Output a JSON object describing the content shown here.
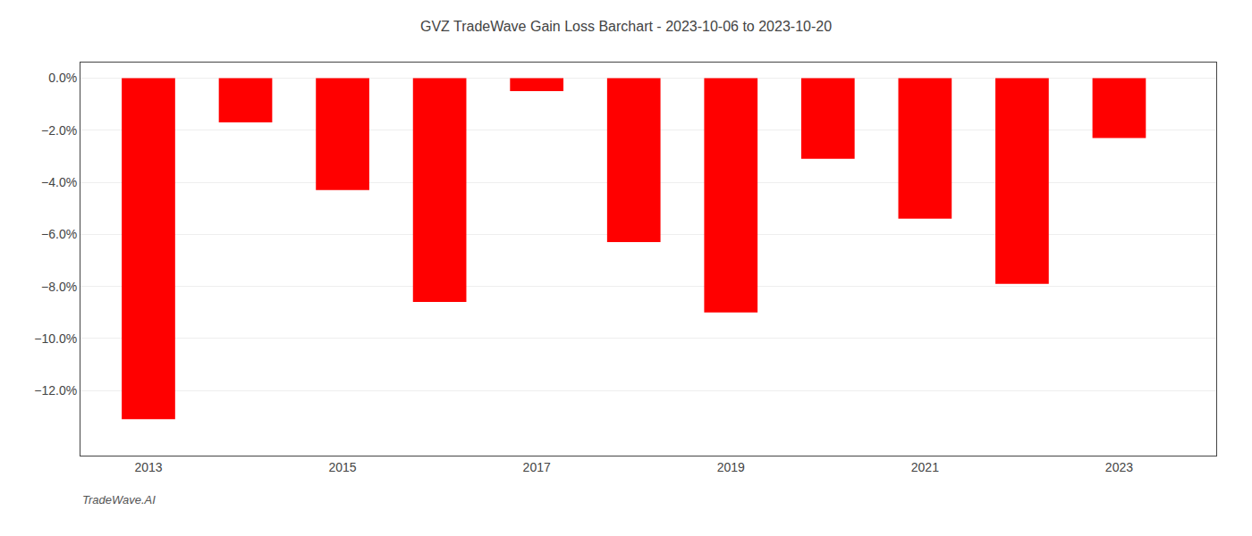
{
  "chart_data": {
    "type": "bar",
    "title": "GVZ TradeWave Gain Loss Barchart - 2023-10-06 to 2023-10-20",
    "annotations": [
      "TradeWave.AI"
    ],
    "x": [
      2013,
      2014,
      2015,
      2016,
      2017,
      2018,
      2019,
      2020,
      2021,
      2022,
      2023
    ],
    "values": [
      -13.1,
      -1.7,
      -4.3,
      -8.6,
      -0.5,
      -6.3,
      -9.0,
      -3.1,
      -5.4,
      -7.9,
      -2.3
    ],
    "color": "#ff0000",
    "xlim": [
      2012.3,
      2024.0
    ],
    "xticks": [
      2013,
      2015,
      2017,
      2019,
      2021,
      2023
    ],
    "ylim": [
      -14.5,
      0.6
    ],
    "yticks": [
      {
        "value": 0.0,
        "label": "0.0%"
      },
      {
        "value": -2.0,
        "label": "−2.0%"
      },
      {
        "value": -4.0,
        "label": "−4.0%"
      },
      {
        "value": -6.0,
        "label": "−6.0%"
      },
      {
        "value": -8.0,
        "label": "−8.0%"
      },
      {
        "value": -10.0,
        "label": "−10.0%"
      },
      {
        "value": -12.0,
        "label": "−12.0%"
      }
    ],
    "grid": true
  }
}
